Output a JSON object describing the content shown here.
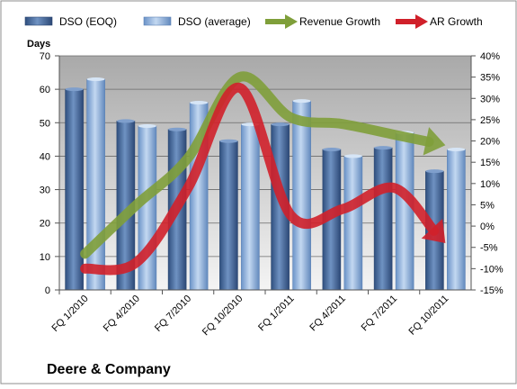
{
  "chart_data": {
    "type": "bar",
    "title": "Deere & Company",
    "ylabel": "Days",
    "y2label": "",
    "categories": [
      "FQ 1/2010",
      "FQ 4/2010",
      "FQ 7/2010",
      "FQ 10/2010",
      "FQ 1/2011",
      "FQ 4/2011",
      "FQ 7/2011",
      "FQ 10/2011"
    ],
    "ylim": [
      0,
      70
    ],
    "yticks": [
      0,
      10,
      20,
      30,
      40,
      50,
      60,
      70
    ],
    "y2lim": [
      -0.15,
      0.4
    ],
    "y2ticks": [
      "-15%",
      "-10%",
      "-5%",
      "0%",
      "5%",
      "10%",
      "15%",
      "20%",
      "25%",
      "30%",
      "35%",
      "40%"
    ],
    "grid": true,
    "legend_position": "top",
    "series": [
      {
        "name": "DSO (EOQ)",
        "kind": "bar",
        "axis": "left",
        "color": "#4a6c9b",
        "values": [
          60,
          50.5,
          48,
          44.5,
          49.5,
          42,
          42.5,
          35.5
        ]
      },
      {
        "name": "DSO (average)",
        "kind": "bar",
        "axis": "left",
        "color": "#8fb3df",
        "values": [
          63,
          49,
          56,
          49.5,
          56.5,
          40,
          47,
          42
        ]
      },
      {
        "name": "Revenue Growth",
        "kind": "arrow-line",
        "axis": "right",
        "color": "#7f9f3a",
        "values": [
          -0.065,
          0.05,
          0.16,
          0.35,
          0.255,
          0.24,
          0.215,
          0.19
        ]
      },
      {
        "name": "AR Growth",
        "kind": "arrow-line",
        "axis": "right",
        "color": "#d0202a",
        "values": [
          -0.1,
          -0.085,
          0.09,
          0.325,
          0.025,
          0.04,
          0.09,
          -0.04
        ]
      }
    ]
  }
}
